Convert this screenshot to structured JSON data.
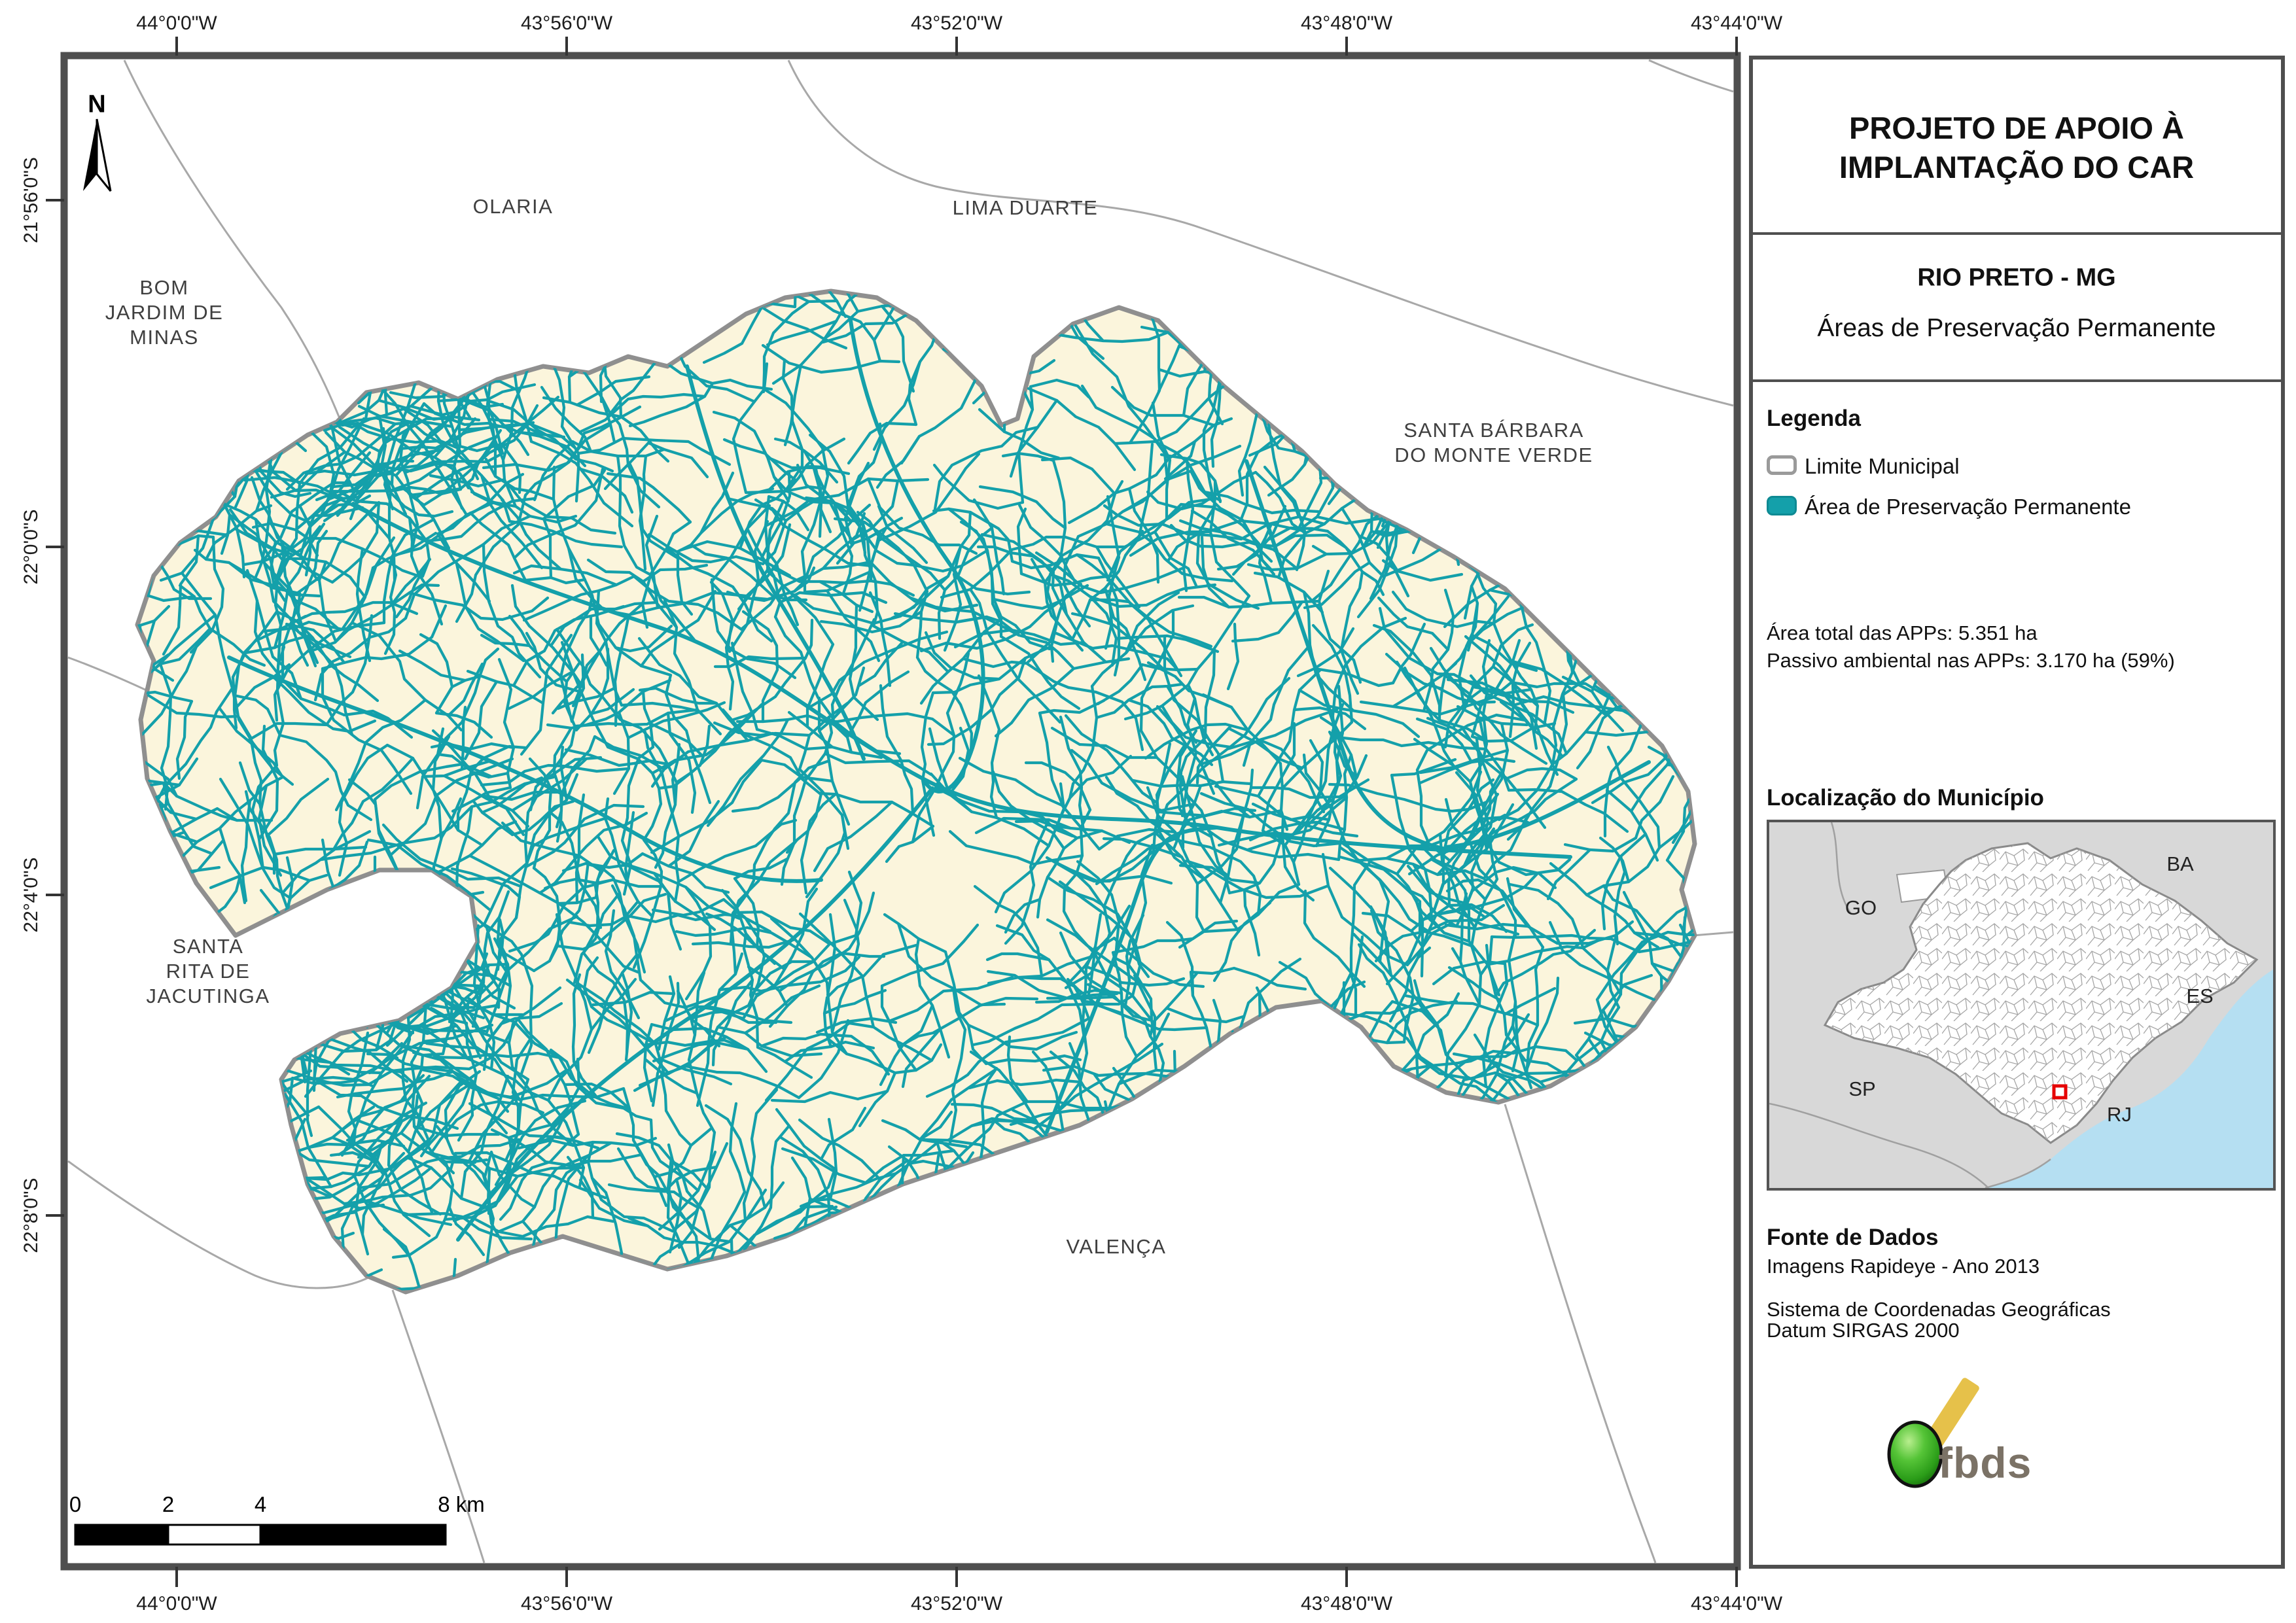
{
  "map": {
    "top_coords": [
      "44°0'0\"W",
      "43°56'0\"W",
      "43°52'0\"W",
      "43°48'0\"W",
      "43°44'0\"W"
    ],
    "bottom_coords": [
      "44°0'0\"W",
      "43°56'0\"W",
      "43°52'0\"W",
      "43°48'0\"W",
      "43°44'0\"W"
    ],
    "left_coords": [
      "21°56'0\"S",
      "22°0'0\"S",
      "22°4'0\"S",
      "22°8'0\"S"
    ],
    "north_label": "N",
    "neighbors": [
      {
        "lines": [
          "OLARIA"
        ]
      },
      {
        "lines": [
          "LIMA DUARTE"
        ]
      },
      {
        "lines": [
          "BOM",
          "JARDIM DE",
          "MINAS"
        ]
      },
      {
        "lines": [
          "SANTA BÁRBARA",
          "DO MONTE VERDE"
        ]
      },
      {
        "lines": [
          "SANTA",
          "RITA DE",
          "JACUTINGA"
        ]
      },
      {
        "lines": [
          "VALENÇA"
        ]
      }
    ],
    "scalebar": {
      "t0": "0",
      "t2": "2",
      "t4": "4",
      "t8": "8 km"
    }
  },
  "panel": {
    "title_line1": "PROJETO DE APOIO À",
    "title_line2": "IMPLANTAÇÃO DO CAR",
    "municipality": "RIO PRETO - MG",
    "subtitle": "Áreas de Preservação Permanente",
    "legend": {
      "heading": "Legenda",
      "item_limit": "Limite Municipal",
      "item_app": "Área de Preservação Permanente"
    },
    "stats_line1": "Área total das APPs: 5.351 ha",
    "stats_line2": "Passivo ambiental nas APPs: 3.170 ha (59%)",
    "location_heading": "Localização do Município",
    "states": {
      "go": "GO",
      "ba": "BA",
      "sp": "SP",
      "es": "ES",
      "rj": "RJ"
    },
    "source_heading": "Fonte de Dados",
    "source_line1": "Imagens Rapideye - Ano 2013",
    "source_line2": "Sistema de Coordenadas Geográficas",
    "source_line3": "Datum SIRGAS 2000",
    "logo_text": "fbds"
  },
  "colors": {
    "app_teal": "#14a0aa",
    "municipality_fill": "#fbf5dc",
    "municipality_border": "#8f8f8f",
    "frame_gray": "#4f4f4f",
    "thin_boundary": "#a8a8a8",
    "inset_land_gray": "#d8d8d8",
    "inset_ocean_blue": "#b5dff2",
    "marker_red": "#e60000",
    "logo_yellow": "#e6c14a",
    "logo_green": "#3cb828",
    "logo_gray": "#7b7266"
  }
}
